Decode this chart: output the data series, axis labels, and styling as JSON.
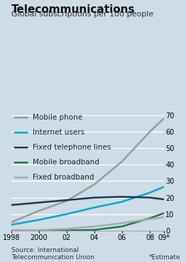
{
  "title": "Telecommunications",
  "subtitle": "Global subscriptions per 100 people",
  "source": "Source: International\nTelecommunication Union",
  "estimate_note": "*Estimate",
  "years": [
    1998,
    2000,
    2002,
    2004,
    2006,
    2008,
    2009
  ],
  "series_order": [
    "Mobile phone",
    "Internet users",
    "Fixed telephone lines",
    "Mobile broadband",
    "Fixed broadband"
  ],
  "series": {
    "Mobile phone": {
      "color": "#9b9b9b",
      "linewidth": 1.8,
      "values": [
        5.0,
        12.0,
        18.0,
        28.0,
        42.0,
        60.0,
        68.0
      ]
    },
    "Internet users": {
      "color": "#00a9cc",
      "linewidth": 1.8,
      "values": [
        3.5,
        6.5,
        10.0,
        14.0,
        17.5,
        23.0,
        26.5
      ]
    },
    "Fixed telephone lines": {
      "color": "#1a3a4a",
      "linewidth": 1.8,
      "values": [
        15.5,
        17.0,
        18.5,
        20.0,
        20.5,
        20.0,
        19.0
      ]
    },
    "Mobile broadband": {
      "color": "#1a7a4a",
      "linewidth": 1.8,
      "values": [
        0.0,
        0.0,
        0.1,
        0.4,
        2.5,
        7.5,
        10.5
      ]
    },
    "Fixed broadband": {
      "color": "#aaaaaa",
      "linewidth": 1.8,
      "values": [
        0.0,
        0.3,
        1.0,
        2.5,
        4.5,
        7.0,
        8.0
      ]
    }
  },
  "ylim": [
    0,
    70
  ],
  "yticks": [
    0,
    10,
    20,
    30,
    40,
    50,
    60,
    70
  ],
  "xtick_labels": [
    "1998",
    "2000",
    "02",
    "04",
    "06",
    "08",
    "09*"
  ],
  "background_color": "#ccdde8",
  "title_fontsize": 11,
  "subtitle_fontsize": 8,
  "legend_fontsize": 7.5,
  "tick_fontsize": 7,
  "source_fontsize": 6.5
}
